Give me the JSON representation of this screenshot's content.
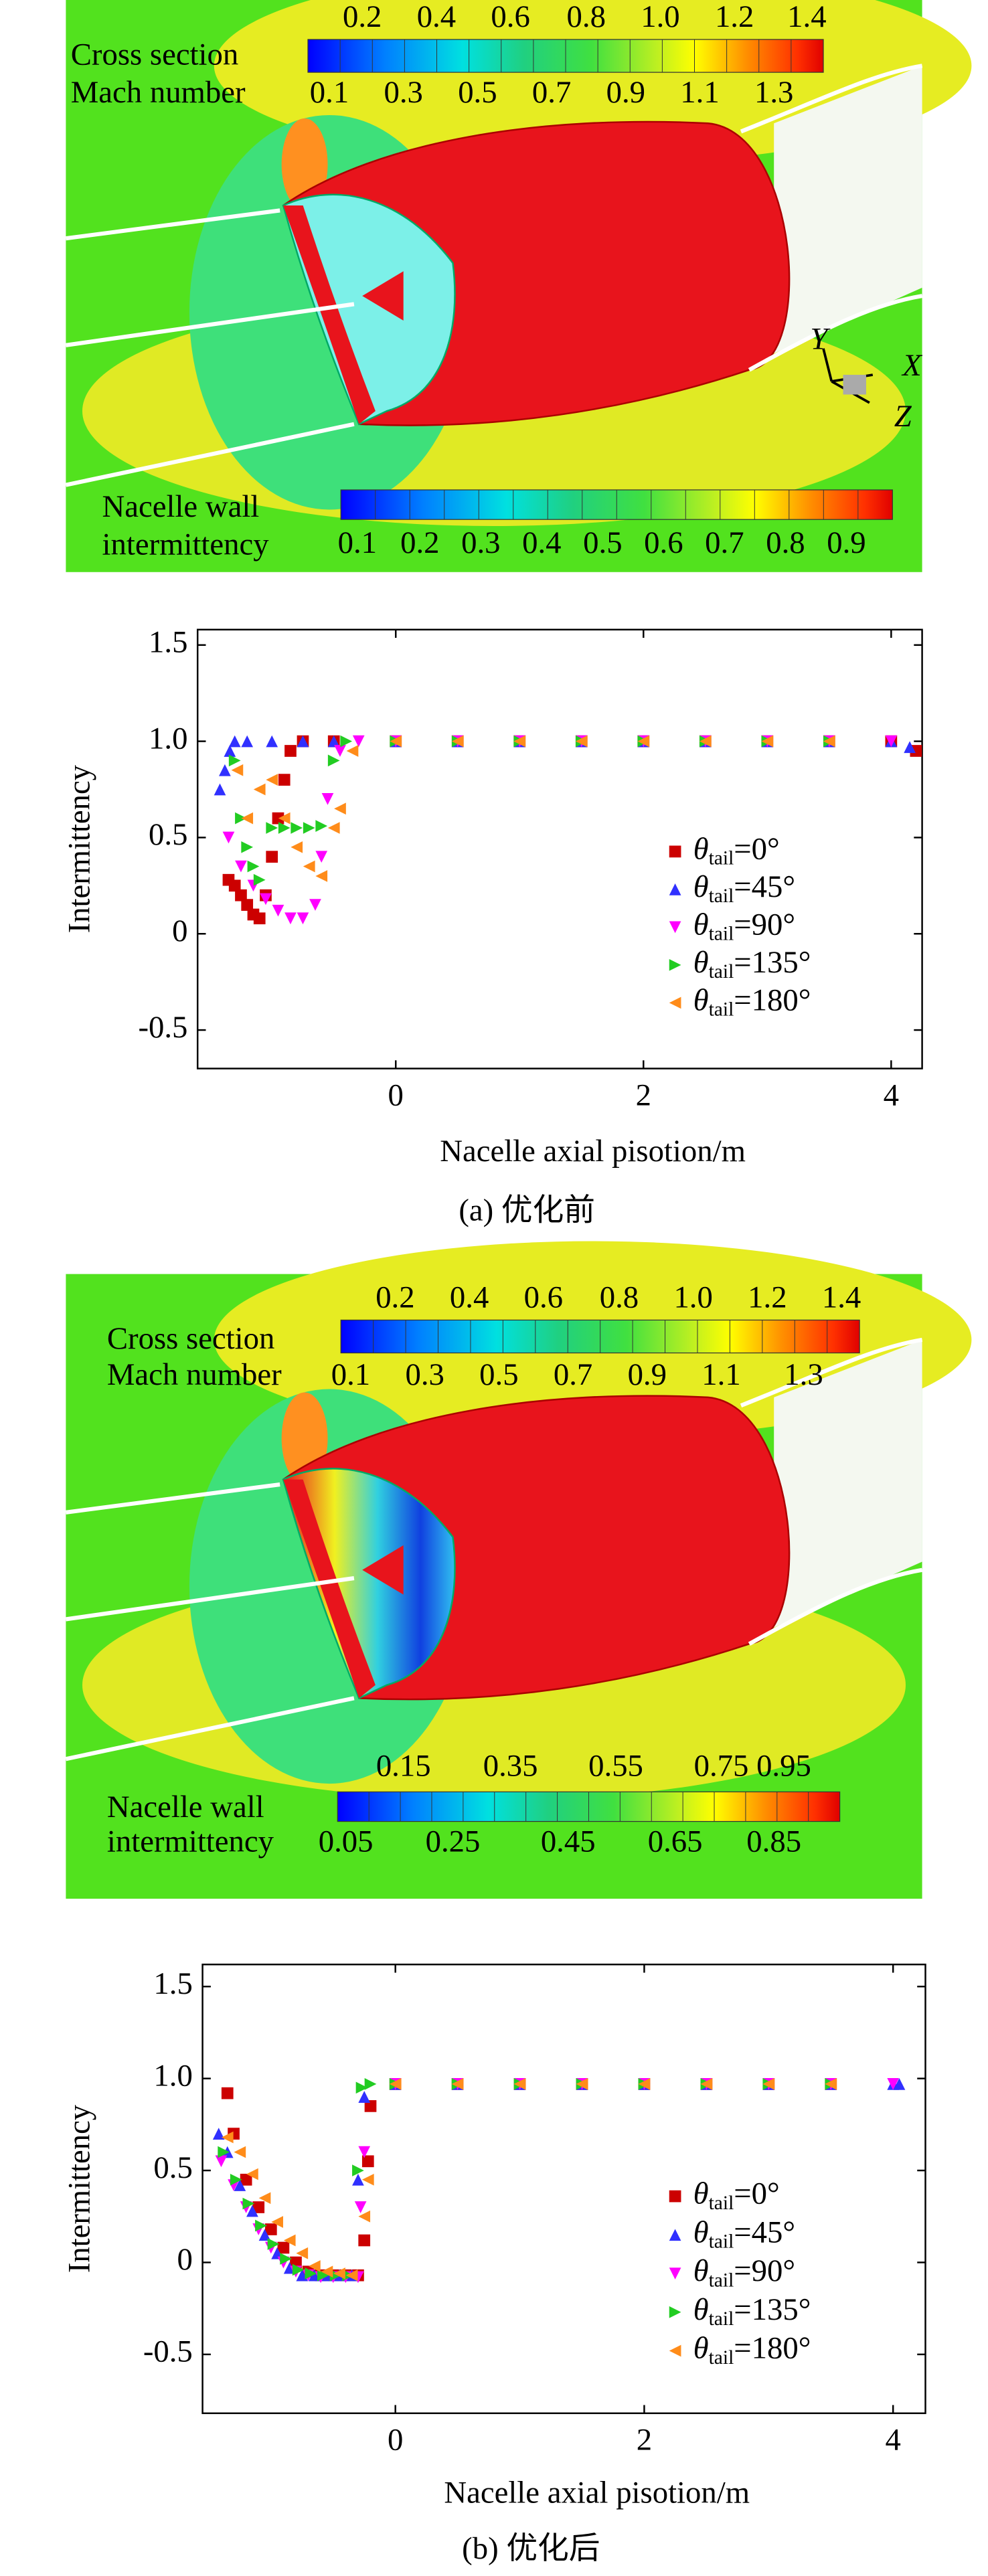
{
  "panels": [
    {
      "mach_title": [
        "Cross section",
        "Mach number"
      ],
      "mach_top": [
        "0.2",
        "0.4",
        "0.6",
        "0.8",
        "1.0",
        "1.2",
        "1.4"
      ],
      "mach_bottom": [
        "0.1",
        "0.3",
        "0.5",
        "0.7",
        "0.9",
        "1.1",
        "1.3"
      ],
      "wall_title": [
        "Nacelle wall",
        "intermittency"
      ],
      "wall_bottom": [
        "0.1",
        "0.2",
        "0.3",
        "0.4",
        "0.5",
        "0.6",
        "0.7",
        "0.8",
        "0.9"
      ],
      "axes": [
        "Y",
        "X",
        "Z"
      ]
    },
    {
      "mach_title": [
        "Cross section",
        "Mach number"
      ],
      "mach_top": [
        "0.2",
        "0.4",
        "0.6",
        "0.8",
        "1.0",
        "1.2",
        "1.4"
      ],
      "mach_bottom": [
        "0.1",
        "0.3",
        "0.5",
        "0.7",
        "0.9",
        "1.1",
        "1.3"
      ],
      "wall_title": [
        "Nacelle wall",
        "intermittency"
      ],
      "wall_top": [
        "0.15",
        "0.35",
        "0.55",
        "0.75",
        "0.95"
      ],
      "wall_bottom": [
        "0.05",
        "0.25",
        "0.45",
        "0.65",
        "0.85"
      ]
    }
  ],
  "chart_data": [
    {
      "type": "scatter",
      "x_label": "Nacelle axial pisotion/m",
      "y_label": "Intermittency",
      "caption": "(a) 优化前",
      "xlim": [
        -1.6,
        4.25
      ],
      "ylim": [
        -0.7,
        1.58
      ],
      "xticks": [
        0,
        2,
        4
      ],
      "yticks": [
        -0.5,
        0,
        0.5,
        {
          "value": 1,
          "label": "1.0"
        },
        1.5
      ],
      "series": [
        {
          "name": "θtail=0°",
          "color": "#cc0000",
          "marker": "square",
          "x": [
            -1.35,
            -1.3,
            -1.25,
            -1.2,
            -1.15,
            -1.1,
            -1.05,
            -1.0,
            -0.95,
            -0.9,
            -0.85,
            -0.75,
            -0.5,
            0,
            0.5,
            1,
            1.5,
            2,
            2.5,
            3,
            3.5,
            4,
            4.2
          ],
          "values": [
            0.28,
            0.25,
            0.2,
            0.15,
            0.1,
            0.08,
            0.2,
            0.4,
            0.6,
            0.8,
            0.95,
            1,
            1,
            1,
            1,
            1,
            1,
            1,
            1,
            1,
            1,
            1,
            0.95
          ]
        },
        {
          "name": "θtail=45°",
          "color": "#3030ff",
          "marker": "up",
          "x": [
            -1.42,
            -1.38,
            -1.34,
            -1.3,
            -1.2,
            -1.0,
            -0.75,
            -0.5,
            0,
            0.5,
            1,
            1.5,
            2,
            2.5,
            3,
            3.5,
            4,
            4.15
          ],
          "values": [
            0.75,
            0.85,
            0.95,
            1,
            1,
            1,
            1,
            1,
            1,
            1,
            1,
            1,
            1,
            1,
            1,
            1,
            1,
            0.97
          ]
        },
        {
          "name": "θtail=90°",
          "color": "#ff00ff",
          "marker": "down",
          "x": [
            -1.35,
            -1.25,
            -1.15,
            -1.05,
            -0.95,
            -0.85,
            -0.75,
            -0.65,
            -0.6,
            -0.55,
            -0.45,
            -0.3,
            0,
            0.5,
            1,
            1.5,
            2,
            2.5,
            3,
            3.5,
            4
          ],
          "values": [
            0.5,
            0.35,
            0.25,
            0.18,
            0.12,
            0.08,
            0.08,
            0.15,
            0.4,
            0.7,
            0.95,
            1,
            1,
            1,
            1,
            1,
            1,
            1,
            1,
            1,
            1
          ]
        },
        {
          "name": "θtail=135°",
          "color": "#22cc22",
          "marker": "right",
          "x": [
            -1.3,
            -1.25,
            -1.2,
            -1.15,
            -1.1,
            -1.0,
            -0.9,
            -0.8,
            -0.7,
            -0.6,
            -0.5,
            -0.4,
            0,
            0.5,
            1,
            1.5,
            2,
            2.5,
            3,
            3.5
          ],
          "values": [
            0.9,
            0.6,
            0.45,
            0.35,
            0.28,
            0.55,
            0.55,
            0.55,
            0.55,
            0.56,
            0.9,
            1,
            1,
            1,
            1,
            1,
            1,
            1,
            1,
            1
          ]
        },
        {
          "name": "θtail=180°",
          "color": "#ff8c1a",
          "marker": "left",
          "x": [
            -1.28,
            -1.2,
            -1.1,
            -1.0,
            -0.9,
            -0.8,
            -0.7,
            -0.6,
            -0.5,
            -0.45,
            -0.35,
            0,
            0.5,
            1,
            1.5,
            2,
            2.5,
            3,
            3.5
          ],
          "values": [
            0.85,
            0.6,
            0.75,
            0.8,
            0.6,
            0.45,
            0.35,
            0.3,
            0.55,
            0.65,
            0.95,
            1,
            1,
            1,
            1,
            1,
            1,
            1,
            1
          ]
        }
      ]
    },
    {
      "type": "scatter",
      "x_label": "Nacelle axial pisotion/m",
      "y_label": "Intermittency",
      "caption": "(b) 优化后",
      "xlim": [
        -1.55,
        4.26
      ],
      "ylim": [
        -0.82,
        1.62
      ],
      "xticks": [
        0,
        2,
        4
      ],
      "yticks": [
        -0.5,
        0,
        0.5,
        {
          "value": 1,
          "label": "1.0"
        },
        1.5
      ],
      "series": [
        {
          "name": "θtail=0°",
          "color": "#cc0000",
          "marker": "square",
          "x": [
            -1.35,
            -1.3,
            -1.2,
            -1.1,
            -1.0,
            -0.9,
            -0.8,
            -0.7,
            -0.6,
            -0.5,
            -0.4,
            -0.3,
            -0.25,
            -0.22,
            -0.2,
            0,
            0.5,
            1,
            1.5,
            2,
            2.5,
            3,
            3.5
          ],
          "values": [
            0.92,
            0.7,
            0.45,
            0.3,
            0.18,
            0.08,
            0.0,
            -0.05,
            -0.07,
            -0.07,
            -0.07,
            -0.07,
            0.12,
            0.55,
            0.85,
            0.97,
            0.97,
            0.97,
            0.97,
            0.97,
            0.97,
            0.97,
            0.97
          ]
        },
        {
          "name": "θtail=45°",
          "color": "#3030ff",
          "marker": "up",
          "x": [
            -1.42,
            -1.35,
            -1.25,
            -1.15,
            -1.05,
            -0.95,
            -0.85,
            -0.75,
            -0.65,
            -0.55,
            -0.45,
            -0.35,
            -0.3,
            -0.25,
            0,
            0.5,
            1,
            1.5,
            2,
            2.5,
            3,
            3.5,
            4,
            4.05
          ],
          "values": [
            0.7,
            0.6,
            0.42,
            0.28,
            0.15,
            0.05,
            -0.03,
            -0.07,
            -0.07,
            -0.07,
            -0.07,
            -0.07,
            0.45,
            0.9,
            0.97,
            0.97,
            0.97,
            0.97,
            0.97,
            0.97,
            0.97,
            0.97,
            0.97,
            0.97
          ]
        },
        {
          "name": "θtail=90°",
          "color": "#ff00ff",
          "marker": "down",
          "x": [
            -1.4,
            -1.3,
            -1.2,
            -1.1,
            -1.0,
            -0.9,
            -0.8,
            -0.7,
            -0.6,
            -0.5,
            -0.4,
            -0.3,
            -0.28,
            -0.25,
            0,
            0.5,
            1,
            1.5,
            2,
            2.5,
            3,
            3.5,
            4
          ],
          "values": [
            0.55,
            0.42,
            0.3,
            0.18,
            0.08,
            0.0,
            -0.05,
            -0.07,
            -0.08,
            -0.08,
            -0.08,
            -0.08,
            0.3,
            0.6,
            0.97,
            0.97,
            0.97,
            0.97,
            0.97,
            0.97,
            0.97,
            0.97,
            0.97
          ]
        },
        {
          "name": "θtail=135°",
          "color": "#22cc22",
          "marker": "right",
          "x": [
            -1.38,
            -1.28,
            -1.18,
            -1.08,
            -0.98,
            -0.88,
            -0.78,
            -0.68,
            -0.58,
            -0.48,
            -0.38,
            -0.3,
            -0.27,
            -0.2,
            0,
            0.5,
            1,
            1.5,
            2,
            2.5,
            3,
            3.5
          ],
          "values": [
            0.6,
            0.45,
            0.32,
            0.2,
            0.1,
            0.02,
            -0.04,
            -0.06,
            -0.07,
            -0.07,
            -0.07,
            0.5,
            0.95,
            0.97,
            0.97,
            0.97,
            0.97,
            0.97,
            0.97,
            0.97,
            0.97,
            0.97
          ]
        },
        {
          "name": "θtail=180°",
          "color": "#ff8c1a",
          "marker": "left",
          "x": [
            -1.35,
            -1.25,
            -1.15,
            -1.05,
            -0.95,
            -0.85,
            -0.75,
            -0.65,
            -0.55,
            -0.45,
            -0.35,
            -0.25,
            -0.22,
            0,
            0.5,
            1,
            1.5,
            2,
            2.5,
            3,
            3.5
          ],
          "values": [
            0.68,
            0.6,
            0.48,
            0.35,
            0.22,
            0.12,
            0.05,
            -0.02,
            -0.05,
            -0.06,
            -0.07,
            0.25,
            0.45,
            0.97,
            0.97,
            0.97,
            0.97,
            0.97,
            0.97,
            0.97,
            0.97
          ]
        }
      ]
    }
  ]
}
